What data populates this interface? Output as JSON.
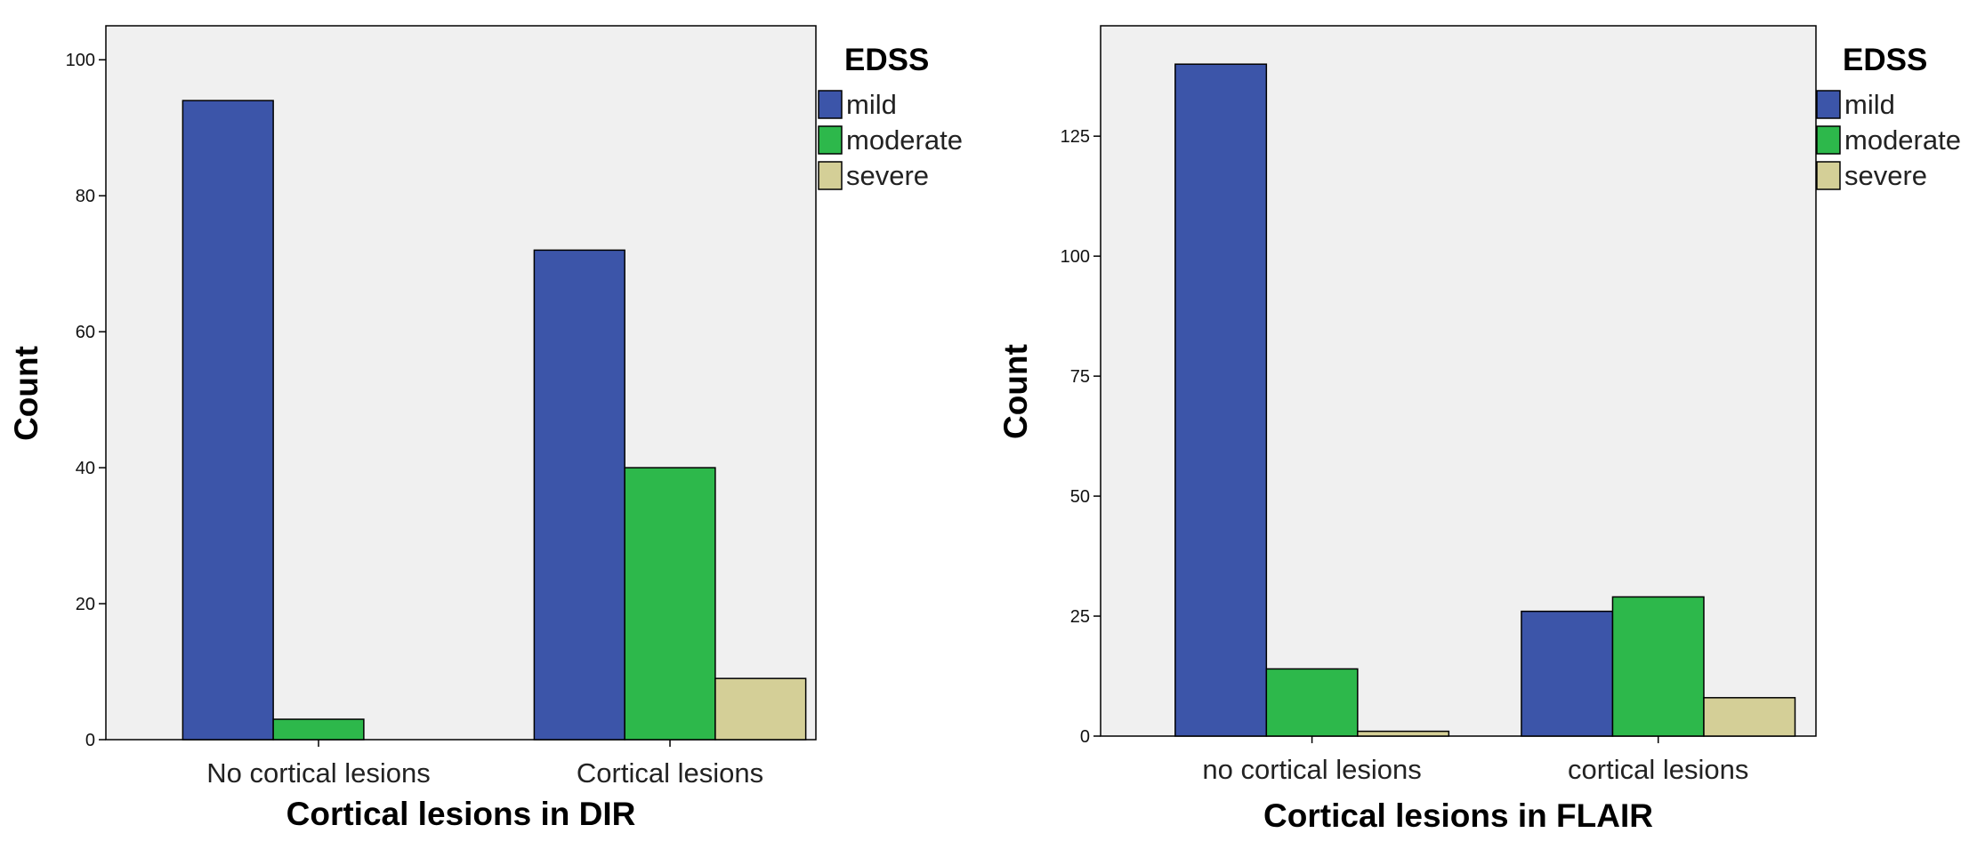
{
  "chart_data": [
    {
      "type": "bar",
      "title": "",
      "xlabel": "Cortical lesions in DIR",
      "ylabel": "Count",
      "categories": [
        "No cortical lesions",
        "Cortical lesions"
      ],
      "ylim": [
        0,
        105
      ],
      "yticks": [
        0,
        20,
        40,
        60,
        80,
        100
      ],
      "grid": false,
      "legend": {
        "title": "EDSS",
        "position": "right-top"
      },
      "series": [
        {
          "name": "mild",
          "color": "#3c55a9",
          "values": [
            94,
            72
          ]
        },
        {
          "name": "moderate",
          "color": "#2db84b",
          "values": [
            3,
            40
          ]
        },
        {
          "name": "severe",
          "color": "#d4cf97",
          "values": [
            0,
            9
          ]
        }
      ]
    },
    {
      "type": "bar",
      "title": "",
      "xlabel": "Cortical lesions in FLAIR",
      "ylabel": "Count",
      "categories": [
        "no cortical lesions",
        "cortical lesions"
      ],
      "ylim": [
        0,
        148
      ],
      "yticks": [
        0,
        25,
        50,
        75,
        100,
        125
      ],
      "grid": false,
      "legend": {
        "title": "EDSS",
        "position": "right-top"
      },
      "series": [
        {
          "name": "mild",
          "color": "#3c55a9",
          "values": [
            140,
            26
          ]
        },
        {
          "name": "moderate",
          "color": "#2db84b",
          "values": [
            14,
            29
          ]
        },
        {
          "name": "severe",
          "color": "#d4cf97",
          "values": [
            1,
            8
          ]
        }
      ]
    }
  ]
}
